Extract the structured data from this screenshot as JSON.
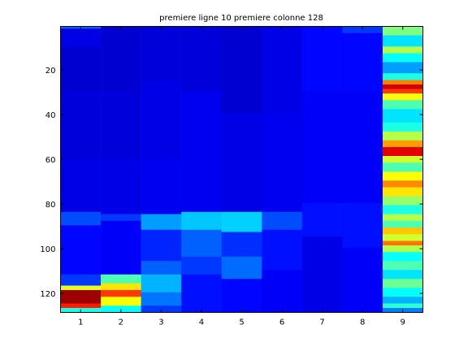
{
  "chart_data": {
    "type": "heatmap",
    "title": "premiere ligne 10 premiere colonne 128",
    "xlabel": "",
    "ylabel": "",
    "x_ticks": [
      "1",
      "2",
      "3",
      "4",
      "5",
      "6",
      "7",
      "8",
      "9"
    ],
    "y_ticks": [
      "20",
      "40",
      "60",
      "80",
      "100",
      "120"
    ],
    "xlim": [
      0.5,
      9.5
    ],
    "ylim": [
      0.5,
      128.5
    ],
    "y_direction": "reverse",
    "colormap": "jet",
    "color_scale_range": [
      0,
      1
    ],
    "grid": false,
    "columns": [
      {
        "x": 1,
        "segments": [
          {
            "y0": 1,
            "y1": 2,
            "v": 0.22
          },
          {
            "y0": 2,
            "y1": 10,
            "v": 0.1
          },
          {
            "y0": 10,
            "y1": 30,
            "v": 0.08
          },
          {
            "y0": 30,
            "y1": 60,
            "v": 0.09
          },
          {
            "y0": 60,
            "y1": 84,
            "v": 0.1
          },
          {
            "y0": 84,
            "y1": 90,
            "v": 0.2
          },
          {
            "y0": 90,
            "y1": 112,
            "v": 0.13
          },
          {
            "y0": 112,
            "y1": 117,
            "v": 0.18
          },
          {
            "y0": 117,
            "y1": 119,
            "v": 0.6
          },
          {
            "y0": 119,
            "y1": 125,
            "v": 0.97
          },
          {
            "y0": 125,
            "y1": 127,
            "v": 0.85
          },
          {
            "y0": 127,
            "y1": 129,
            "v": 0.4
          }
        ]
      },
      {
        "x": 2,
        "segments": [
          {
            "y0": 1,
            "y1": 30,
            "v": 0.08
          },
          {
            "y0": 30,
            "y1": 60,
            "v": 0.09
          },
          {
            "y0": 60,
            "y1": 85,
            "v": 0.1
          },
          {
            "y0": 85,
            "y1": 88,
            "v": 0.18
          },
          {
            "y0": 88,
            "y1": 112,
            "v": 0.12
          },
          {
            "y0": 112,
            "y1": 116,
            "v": 0.45
          },
          {
            "y0": 116,
            "y1": 119,
            "v": 0.65
          },
          {
            "y0": 119,
            "y1": 122,
            "v": 0.82
          },
          {
            "y0": 122,
            "y1": 126,
            "v": 0.62
          },
          {
            "y0": 126,
            "y1": 129,
            "v": 0.38
          }
        ]
      },
      {
        "x": 3,
        "segments": [
          {
            "y0": 1,
            "y1": 25,
            "v": 0.09
          },
          {
            "y0": 25,
            "y1": 60,
            "v": 0.1
          },
          {
            "y0": 60,
            "y1": 85,
            "v": 0.11
          },
          {
            "y0": 85,
            "y1": 92,
            "v": 0.28
          },
          {
            "y0": 92,
            "y1": 106,
            "v": 0.16
          },
          {
            "y0": 106,
            "y1": 112,
            "v": 0.22
          },
          {
            "y0": 112,
            "y1": 120,
            "v": 0.3
          },
          {
            "y0": 120,
            "y1": 126,
            "v": 0.24
          },
          {
            "y0": 126,
            "y1": 129,
            "v": 0.18
          }
        ]
      },
      {
        "x": 4,
        "segments": [
          {
            "y0": 1,
            "y1": 30,
            "v": 0.09
          },
          {
            "y0": 30,
            "y1": 60,
            "v": 0.11
          },
          {
            "y0": 60,
            "y1": 84,
            "v": 0.11
          },
          {
            "y0": 84,
            "y1": 92,
            "v": 0.32
          },
          {
            "y0": 92,
            "y1": 104,
            "v": 0.22
          },
          {
            "y0": 104,
            "y1": 112,
            "v": 0.18
          },
          {
            "y0": 112,
            "y1": 129,
            "v": 0.14
          }
        ]
      },
      {
        "x": 5,
        "segments": [
          {
            "y0": 1,
            "y1": 40,
            "v": 0.08
          },
          {
            "y0": 40,
            "y1": 84,
            "v": 0.1
          },
          {
            "y0": 84,
            "y1": 93,
            "v": 0.33
          },
          {
            "y0": 93,
            "y1": 104,
            "v": 0.17
          },
          {
            "y0": 104,
            "y1": 114,
            "v": 0.23
          },
          {
            "y0": 114,
            "y1": 129,
            "v": 0.13
          }
        ]
      },
      {
        "x": 6,
        "segments": [
          {
            "y0": 1,
            "y1": 40,
            "v": 0.1
          },
          {
            "y0": 40,
            "y1": 84,
            "v": 0.11
          },
          {
            "y0": 84,
            "y1": 92,
            "v": 0.2
          },
          {
            "y0": 92,
            "y1": 110,
            "v": 0.14
          },
          {
            "y0": 110,
            "y1": 129,
            "v": 0.12
          }
        ]
      },
      {
        "x": 7,
        "segments": [
          {
            "y0": 1,
            "y1": 30,
            "v": 0.13
          },
          {
            "y0": 30,
            "y1": 80,
            "v": 0.12
          },
          {
            "y0": 80,
            "y1": 95,
            "v": 0.14
          },
          {
            "y0": 95,
            "y1": 129,
            "v": 0.1
          }
        ]
      },
      {
        "x": 8,
        "segments": [
          {
            "y0": 1,
            "y1": 4,
            "v": 0.18
          },
          {
            "y0": 4,
            "y1": 30,
            "v": 0.13
          },
          {
            "y0": 30,
            "y1": 80,
            "v": 0.12
          },
          {
            "y0": 80,
            "y1": 100,
            "v": 0.14
          },
          {
            "y0": 100,
            "y1": 129,
            "v": 0.12
          }
        ]
      },
      {
        "x": 9,
        "segments": [
          {
            "y0": 1,
            "y1": 5,
            "v": 0.5
          },
          {
            "y0": 5,
            "y1": 10,
            "v": 0.35
          },
          {
            "y0": 10,
            "y1": 13,
            "v": 0.55
          },
          {
            "y0": 13,
            "y1": 17,
            "v": 0.38
          },
          {
            "y0": 17,
            "y1": 22,
            "v": 0.28
          },
          {
            "y0": 22,
            "y1": 25,
            "v": 0.4
          },
          {
            "y0": 25,
            "y1": 27,
            "v": 0.75
          },
          {
            "y0": 27,
            "y1": 29,
            "v": 0.92
          },
          {
            "y0": 29,
            "y1": 31,
            "v": 0.82
          },
          {
            "y0": 31,
            "y1": 34,
            "v": 0.62
          },
          {
            "y0": 34,
            "y1": 38,
            "v": 0.45
          },
          {
            "y0": 38,
            "y1": 44,
            "v": 0.35
          },
          {
            "y0": 44,
            "y1": 48,
            "v": 0.4
          },
          {
            "y0": 48,
            "y1": 52,
            "v": 0.55
          },
          {
            "y0": 52,
            "y1": 55,
            "v": 0.72
          },
          {
            "y0": 55,
            "y1": 59,
            "v": 0.9
          },
          {
            "y0": 59,
            "y1": 62,
            "v": 0.58
          },
          {
            "y0": 62,
            "y1": 66,
            "v": 0.45
          },
          {
            "y0": 66,
            "y1": 70,
            "v": 0.62
          },
          {
            "y0": 70,
            "y1": 73,
            "v": 0.74
          },
          {
            "y0": 73,
            "y1": 77,
            "v": 0.65
          },
          {
            "y0": 77,
            "y1": 81,
            "v": 0.52
          },
          {
            "y0": 81,
            "y1": 85,
            "v": 0.4
          },
          {
            "y0": 85,
            "y1": 88,
            "v": 0.55
          },
          {
            "y0": 88,
            "y1": 91,
            "v": 0.45
          },
          {
            "y0": 91,
            "y1": 94,
            "v": 0.68
          },
          {
            "y0": 94,
            "y1": 97,
            "v": 0.58
          },
          {
            "y0": 97,
            "y1": 99,
            "v": 0.76
          },
          {
            "y0": 99,
            "y1": 102,
            "v": 0.55
          },
          {
            "y0": 102,
            "y1": 106,
            "v": 0.38
          },
          {
            "y0": 106,
            "y1": 110,
            "v": 0.45
          },
          {
            "y0": 110,
            "y1": 114,
            "v": 0.35
          },
          {
            "y0": 114,
            "y1": 118,
            "v": 0.48
          },
          {
            "y0": 118,
            "y1": 122,
            "v": 0.38
          },
          {
            "y0": 122,
            "y1": 125,
            "v": 0.3
          },
          {
            "y0": 125,
            "y1": 127,
            "v": 0.42
          },
          {
            "y0": 127,
            "y1": 129,
            "v": 0.25
          }
        ]
      }
    ]
  }
}
